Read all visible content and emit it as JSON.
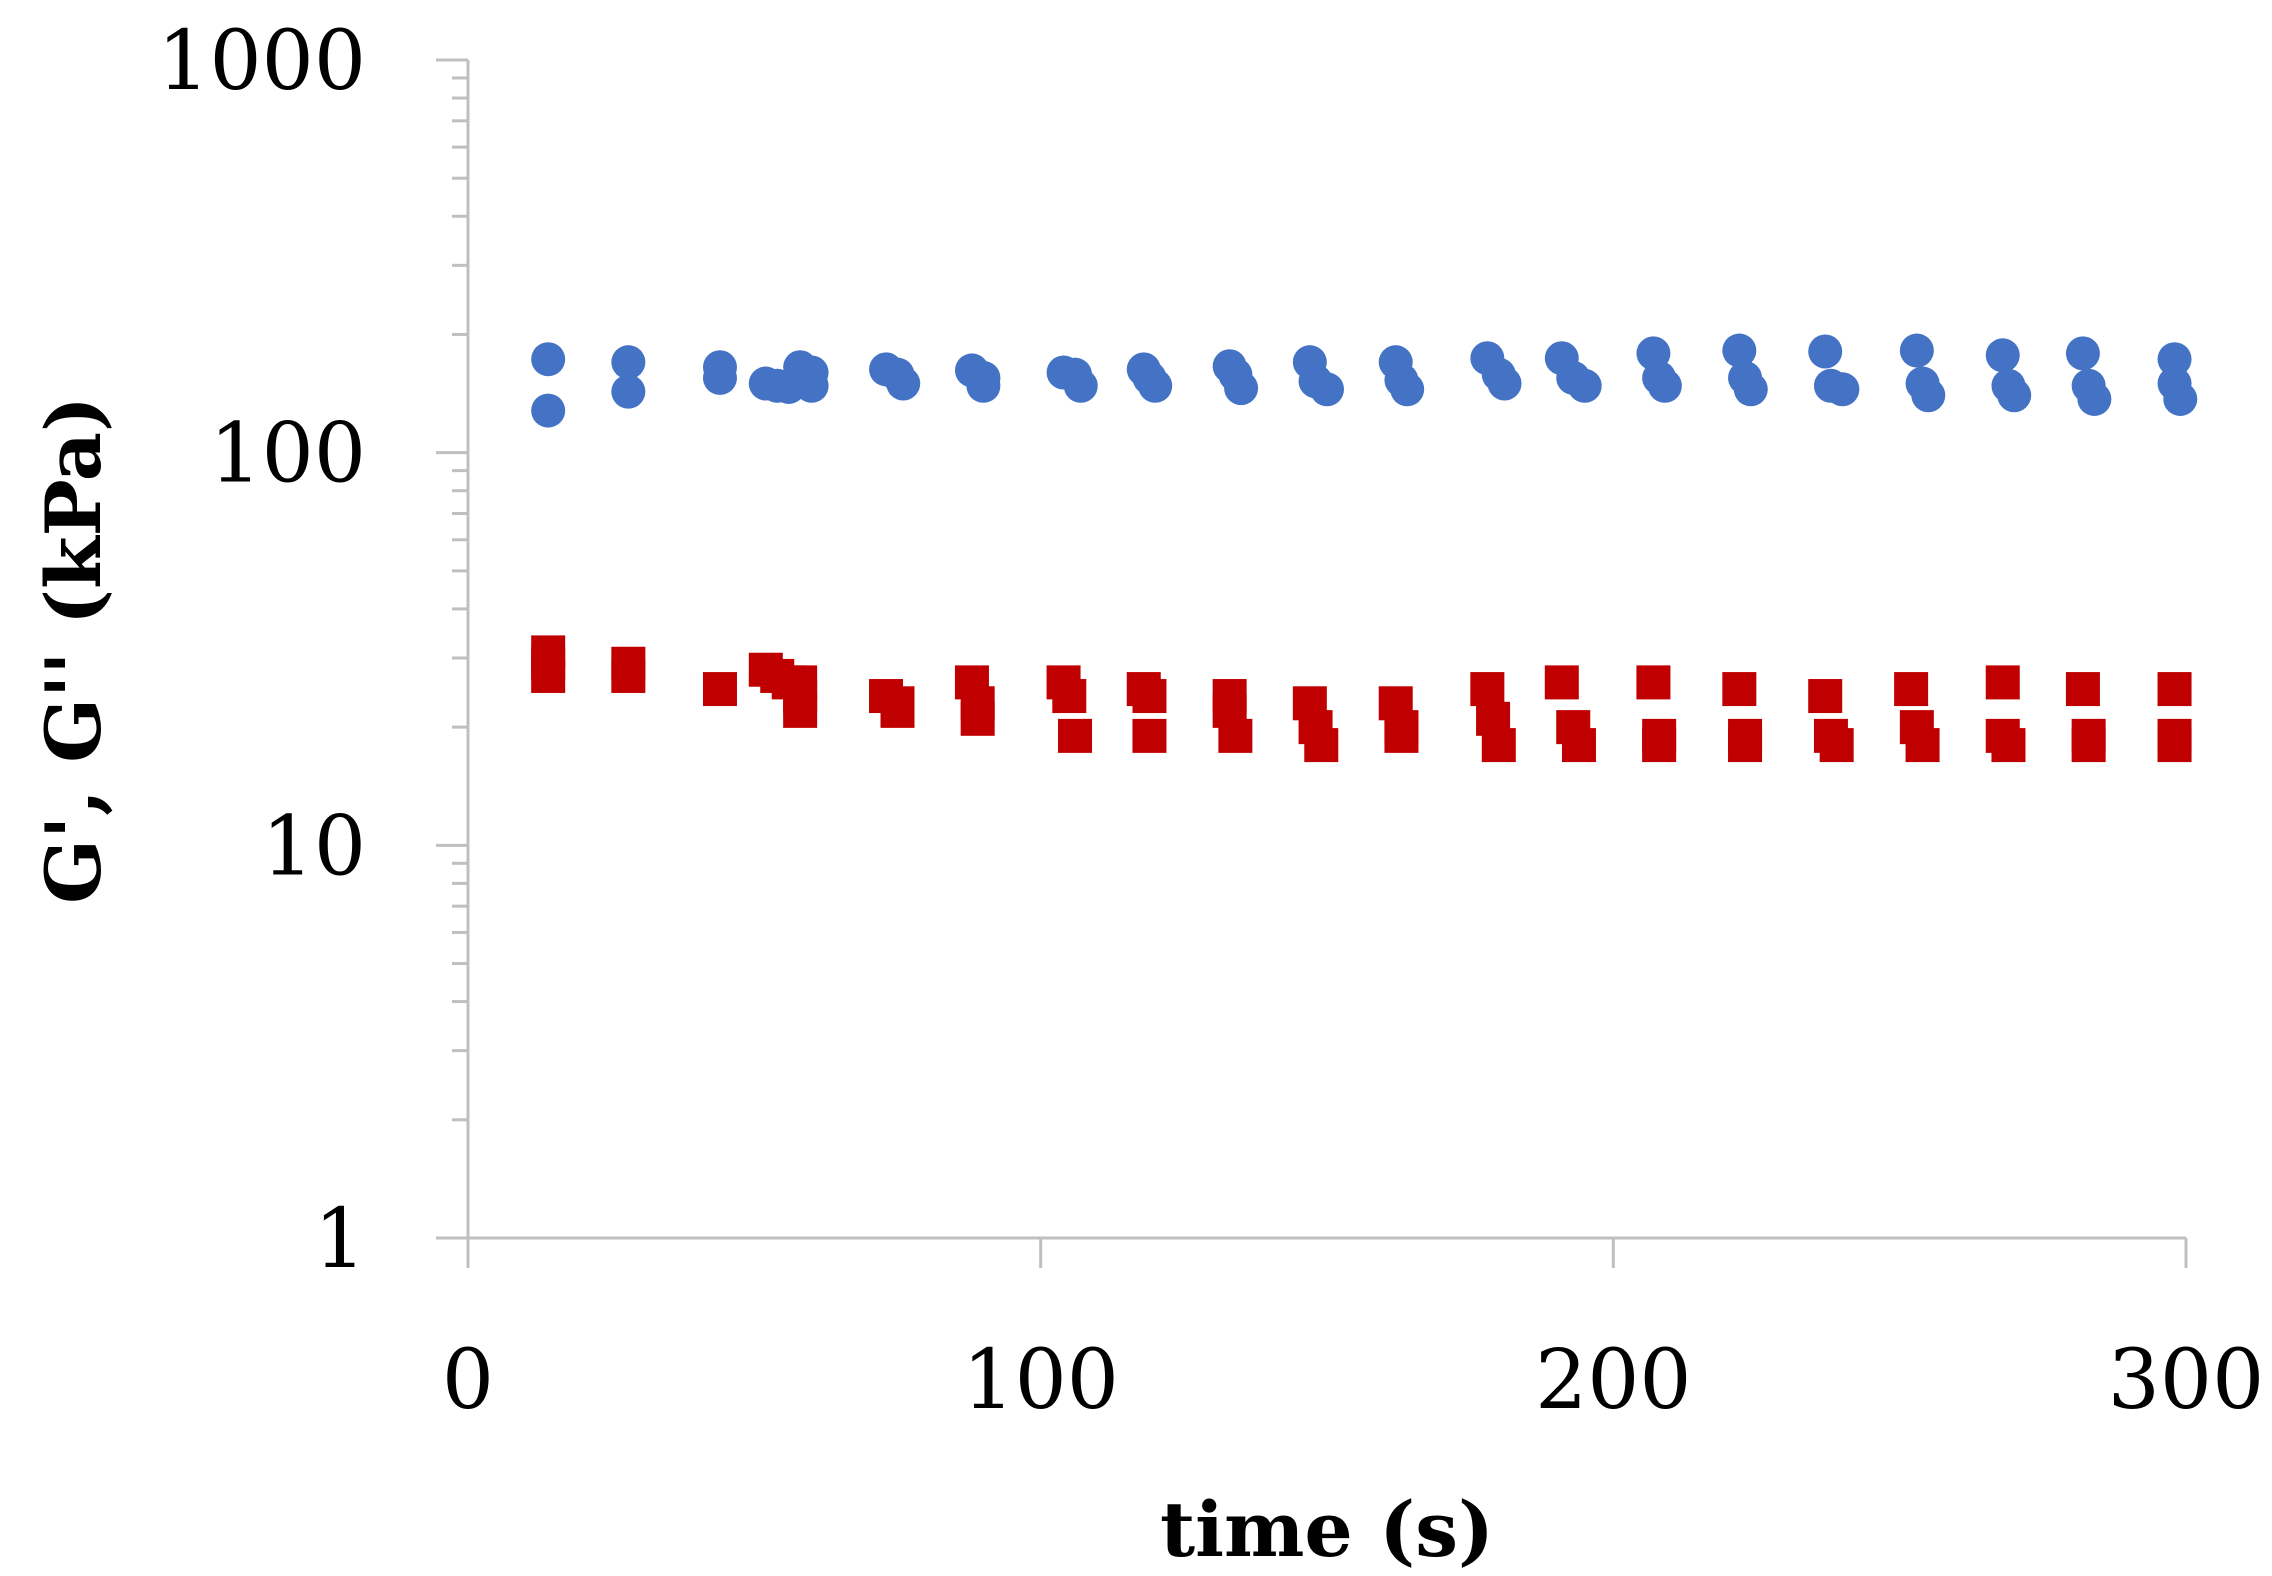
{
  "chart_data": {
    "type": "scatter",
    "xlabel": "time (s)",
    "ylabel": "G', G'' (kPa)",
    "xlim": [
      0,
      300
    ],
    "ylim": [
      1,
      1000
    ],
    "y_scale": "log",
    "x_ticks": [
      0,
      100,
      200,
      300
    ],
    "x_tick_labels": [
      "0",
      "100",
      "200",
      "300"
    ],
    "y_ticks": [
      1,
      10,
      100,
      1000
    ],
    "y_tick_labels": [
      "1",
      "10",
      "100",
      "1000"
    ],
    "grid": false,
    "legend": "none",
    "series": [
      {
        "marker": "circle",
        "color": "#4472C4",
        "x": [
          14,
          14,
          28,
          28,
          44,
          44,
          52,
          54,
          56,
          58,
          60,
          60,
          73,
          75,
          76,
          88,
          90,
          90,
          104,
          106,
          107,
          118,
          119,
          120,
          133,
          134,
          135,
          147,
          148,
          150,
          162,
          163,
          164,
          178,
          180,
          181,
          191,
          193,
          195,
          207,
          208,
          209,
          222,
          223,
          224,
          237,
          238,
          240,
          253,
          254,
          255,
          268,
          269,
          270,
          282,
          283,
          284,
          298,
          298,
          299
        ],
        "y": [
          173,
          128,
          170,
          143,
          165,
          155,
          150,
          148,
          147,
          165,
          160,
          148,
          163,
          158,
          150,
          162,
          155,
          148,
          160,
          158,
          148,
          163,
          155,
          148,
          166,
          158,
          146,
          170,
          152,
          145,
          170,
          153,
          145,
          174,
          158,
          150,
          174,
          155,
          148,
          179,
          155,
          148,
          182,
          155,
          145,
          181,
          148,
          145,
          182,
          150,
          140,
          177,
          148,
          140,
          179,
          148,
          137,
          173,
          150,
          137
        ]
      },
      {
        "marker": "square",
        "color": "#C00000",
        "x": [
          14,
          14,
          14,
          28,
          28,
          44,
          52,
          54,
          56,
          58,
          58,
          58,
          73,
          75,
          75,
          88,
          89,
          89,
          104,
          105,
          106,
          118,
          119,
          119,
          133,
          133,
          134,
          147,
          148,
          149,
          162,
          163,
          163,
          178,
          179,
          180,
          191,
          193,
          194,
          207,
          208,
          208,
          222,
          223,
          223,
          237,
          238,
          239,
          252,
          253,
          254,
          268,
          268,
          269,
          282,
          283,
          283,
          298,
          298,
          298
        ],
        "y": [
          31,
          29,
          27,
          29,
          27,
          25,
          28,
          27,
          26,
          26,
          24,
          22,
          24,
          23,
          22,
          26,
          23,
          21,
          26,
          24,
          19,
          25,
          24,
          19,
          24,
          22,
          19,
          23,
          20,
          18,
          23,
          20,
          19,
          25,
          21,
          18,
          26,
          20,
          18,
          26,
          19,
          18,
          25,
          19,
          18,
          24,
          19,
          18,
          25,
          20,
          18,
          26,
          19,
          18,
          25,
          19,
          18,
          25,
          19,
          18
        ]
      }
    ]
  }
}
